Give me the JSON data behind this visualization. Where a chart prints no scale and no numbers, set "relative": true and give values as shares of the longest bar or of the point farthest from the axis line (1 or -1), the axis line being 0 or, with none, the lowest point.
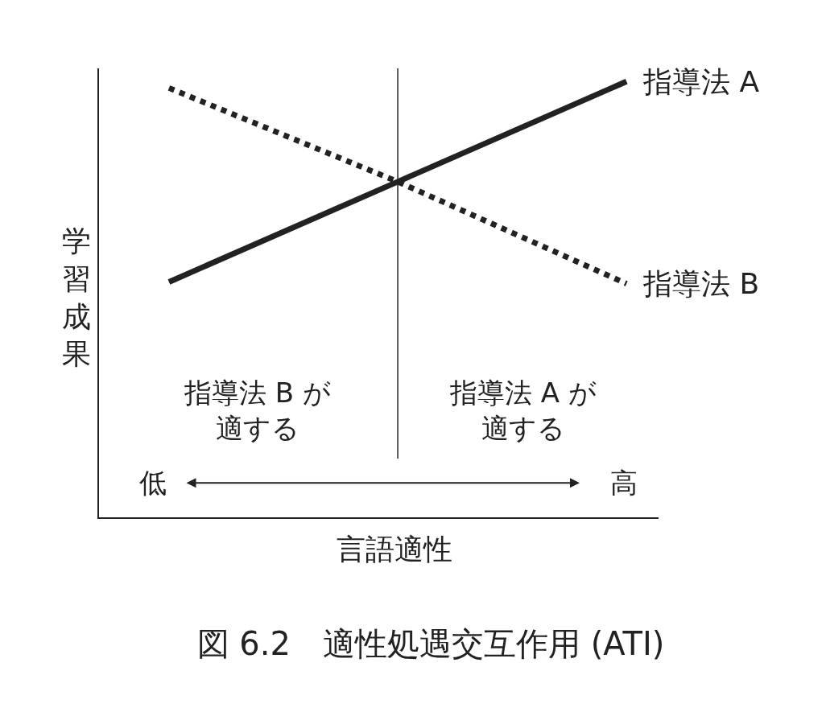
{
  "chart_data": {
    "type": "line",
    "relative": true,
    "title": "図 6.2　適性処遇交互作用 (ATI)",
    "xlabel": "言語適性",
    "ylabel": "学習成果",
    "series": [
      {
        "name": "指導法 A",
        "color": "#222222",
        "line_style": "solid",
        "values": [
          0.54,
          0.77,
          1.0
        ]
      },
      {
        "name": "指導法 B",
        "color": "#222222",
        "line_style": "dotted",
        "values": [
          0.985,
          0.77,
          0.536
        ]
      }
    ],
    "categories": [
      null,
      null,
      null
    ],
    "annotations": [
      "指導法 B が適する",
      "指導法 A が適する",
      "低",
      "高"
    ],
    "legend": false,
    "marker": "none"
  }
}
